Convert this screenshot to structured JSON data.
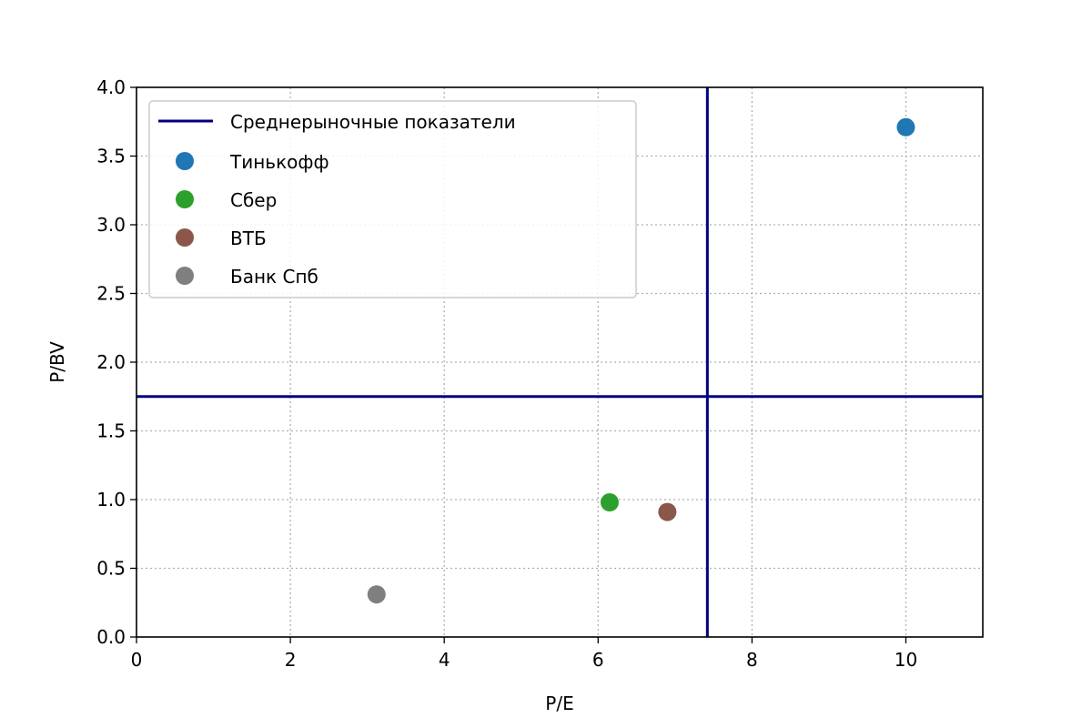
{
  "chart_data": {
    "type": "scatter",
    "xlabel": "P/E",
    "ylabel": "P/BV",
    "xlim": [
      0,
      11
    ],
    "ylim": [
      0,
      4
    ],
    "x_ticks": [
      0,
      2,
      4,
      6,
      8,
      10
    ],
    "y_ticks": [
      0.0,
      0.5,
      1.0,
      1.5,
      2.0,
      2.5,
      3.0,
      3.5,
      4.0
    ],
    "x_tick_labels": [
      "0",
      "2",
      "4",
      "6",
      "8",
      "10"
    ],
    "y_tick_labels": [
      "0.0",
      "0.5",
      "1.0",
      "1.5",
      "2.0",
      "2.5",
      "3.0",
      "3.5",
      "4.0"
    ],
    "grid": true,
    "grid_style": "dotted",
    "legend_position": "top-left",
    "reference_lines": {
      "name": "Среднерыночные показатели",
      "color": "#000080",
      "x": 7.42,
      "y": 1.75
    },
    "series": [
      {
        "name": "Тинькофф",
        "color": "#1f77b4",
        "x": 10.0,
        "y": 3.71
      },
      {
        "name": "Сбер",
        "color": "#2ca02c",
        "x": 6.15,
        "y": 0.98
      },
      {
        "name": "ВТБ",
        "color": "#8c564b",
        "x": 6.9,
        "y": 0.91
      },
      {
        "name": "Банк Спб",
        "color": "#7f7f7f",
        "x": 3.12,
        "y": 0.31
      }
    ]
  }
}
